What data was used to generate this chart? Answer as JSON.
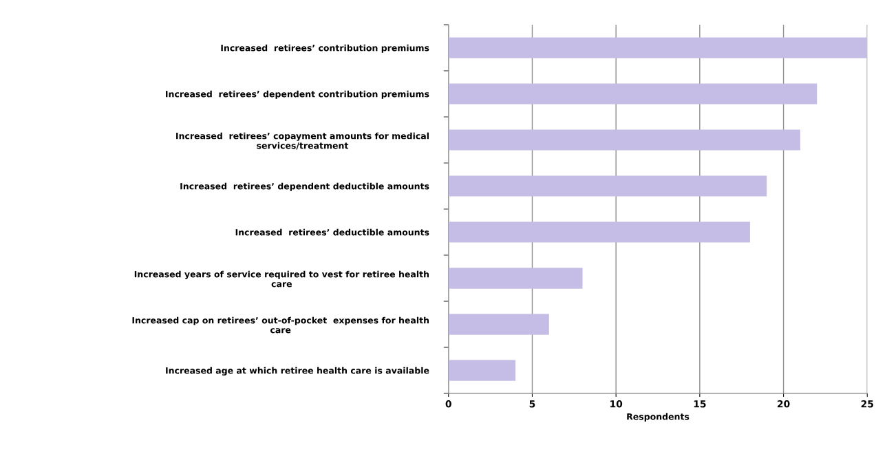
{
  "chart_data": {
    "type": "bar",
    "orientation": "horizontal",
    "xlabel": "Respondents",
    "categories": [
      "Increased  retirees’ contribution premiums",
      "Increased  retirees’ dependent contribution premiums",
      "Increased  retirees’ copayment amounts for medical\nservices/treatment",
      "Increased  retirees’ dependent deductible amounts",
      "Increased  retirees’ deductible amounts",
      "Increased years of service required to vest for retiree health\ncare",
      "Increased cap on retirees’ out-of-pocket  expenses for health\ncare",
      "Increased age at which retiree health care is available"
    ],
    "values": [
      25,
      22,
      21,
      19,
      18,
      8,
      6,
      4
    ],
    "color": "#c6bde6",
    "xlim": [
      0,
      25
    ],
    "xticks": [
      0,
      5,
      10,
      15,
      20,
      25
    ],
    "grid": "x",
    "legend": false
  }
}
